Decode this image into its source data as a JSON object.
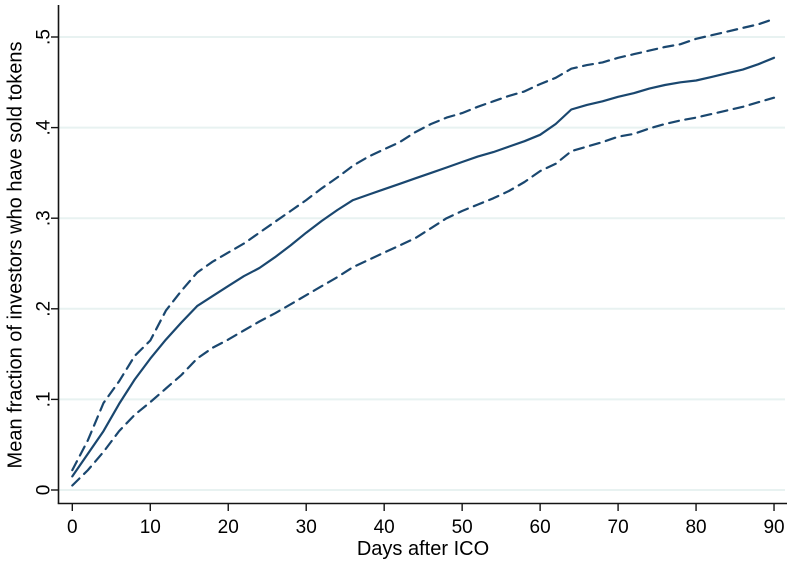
{
  "figure": {
    "background": "#ffffff",
    "line_color": "#1a476f",
    "grid_color": "#e8f2f1",
    "axis_color": "#141414",
    "text_color": "#000000"
  },
  "chart_data": {
    "type": "line",
    "title": "",
    "xlabel": "Days after ICO",
    "ylabel": "Mean fraction of investors who have sold tokens",
    "xlim": [
      0,
      90
    ],
    "ylim": [
      0,
      0.5
    ],
    "xticks": [
      0,
      10,
      20,
      30,
      40,
      50,
      60,
      70,
      80,
      90
    ],
    "xtick_labels": [
      "0",
      "10",
      "20",
      "30",
      "40",
      "50",
      "60",
      "70",
      "80",
      "90"
    ],
    "yticks": [
      0,
      0.1,
      0.2,
      0.3,
      0.4,
      0.5
    ],
    "ytick_labels": [
      "0",
      ".1",
      ".2",
      ".3",
      ".4",
      ".5"
    ],
    "grid": "horizontal",
    "legend": "none",
    "x": [
      0,
      2,
      4,
      6,
      8,
      10,
      12,
      14,
      16,
      18,
      20,
      22,
      24,
      26,
      28,
      30,
      32,
      34,
      36,
      38,
      40,
      42,
      44,
      46,
      48,
      50,
      52,
      54,
      56,
      58,
      60,
      62,
      64,
      66,
      68,
      70,
      72,
      74,
      76,
      78,
      80,
      82,
      84,
      86,
      88,
      90
    ],
    "series": [
      {
        "name": "mean",
        "style": "solid",
        "values": [
          0.015,
          0.04,
          0.065,
          0.095,
          0.122,
          0.145,
          0.166,
          0.185,
          0.203,
          0.214,
          0.225,
          0.236,
          0.245,
          0.257,
          0.27,
          0.284,
          0.297,
          0.309,
          0.32,
          0.326,
          0.332,
          0.338,
          0.344,
          0.35,
          0.356,
          0.362,
          0.368,
          0.373,
          0.379,
          0.385,
          0.392,
          0.404,
          0.42,
          0.425,
          0.429,
          0.434,
          0.438,
          0.443,
          0.447,
          0.45,
          0.452,
          0.456,
          0.46,
          0.464,
          0.47,
          0.477
        ]
      },
      {
        "name": "ci-upper",
        "style": "dashed",
        "values": [
          0.022,
          0.055,
          0.096,
          0.12,
          0.148,
          0.165,
          0.198,
          0.22,
          0.24,
          0.252,
          0.262,
          0.272,
          0.284,
          0.296,
          0.308,
          0.32,
          0.333,
          0.345,
          0.358,
          0.368,
          0.376,
          0.384,
          0.395,
          0.404,
          0.411,
          0.416,
          0.423,
          0.429,
          0.435,
          0.44,
          0.448,
          0.455,
          0.465,
          0.469,
          0.472,
          0.477,
          0.481,
          0.485,
          0.489,
          0.492,
          0.498,
          0.502,
          0.506,
          0.51,
          0.514,
          0.52
        ]
      },
      {
        "name": "ci-lower",
        "style": "dashed",
        "values": [
          0.005,
          0.022,
          0.042,
          0.065,
          0.083,
          0.097,
          0.112,
          0.127,
          0.145,
          0.157,
          0.166,
          0.176,
          0.186,
          0.195,
          0.205,
          0.215,
          0.225,
          0.235,
          0.246,
          0.254,
          0.262,
          0.27,
          0.278,
          0.289,
          0.3,
          0.308,
          0.315,
          0.322,
          0.33,
          0.34,
          0.352,
          0.36,
          0.374,
          0.379,
          0.384,
          0.39,
          0.393,
          0.399,
          0.404,
          0.408,
          0.411,
          0.415,
          0.419,
          0.423,
          0.428,
          0.433
        ]
      }
    ]
  }
}
